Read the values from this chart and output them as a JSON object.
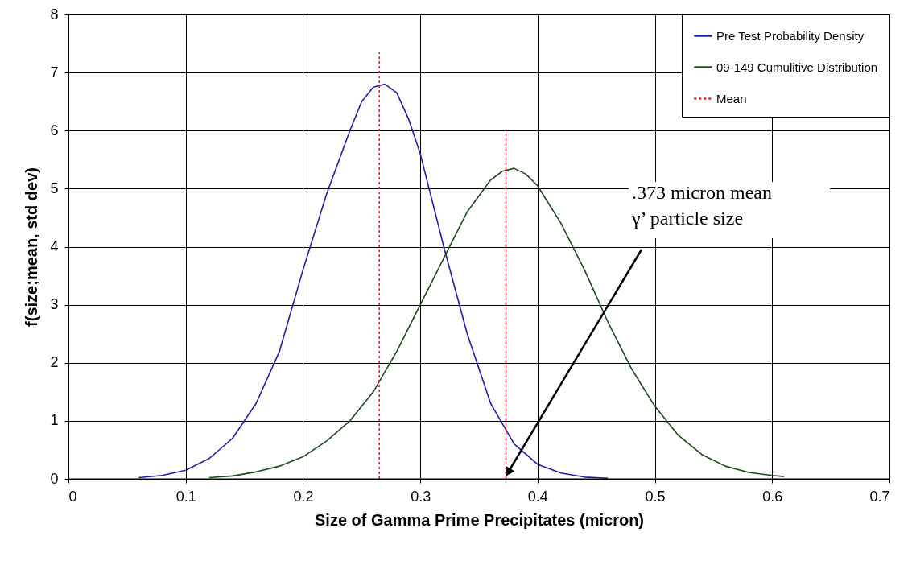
{
  "chart_data": {
    "type": "line",
    "xlabel": "Size of Gamma Prime Precipitates (micron)",
    "ylabel": "f(size;mean, std dev)",
    "xlim": [
      0,
      0.7
    ],
    "xticks": [
      0,
      0.1,
      0.2,
      0.3,
      0.4,
      0.5,
      0.6,
      0.7
    ],
    "ylim": [
      0,
      8
    ],
    "yticks": [
      0,
      1,
      2,
      3,
      4,
      5,
      6,
      7,
      8
    ],
    "grid": true,
    "legend": "top right",
    "series": [
      {
        "name": "Pre Test Probability Density",
        "color": "#1f1fa0",
        "line_style": "solid",
        "x": [
          0.06,
          0.08,
          0.1,
          0.12,
          0.14,
          0.16,
          0.18,
          0.2,
          0.22,
          0.24,
          0.25,
          0.26,
          0.27,
          0.28,
          0.29,
          0.3,
          0.32,
          0.34,
          0.36,
          0.38,
          0.4,
          0.42,
          0.44,
          0.46
        ],
        "values": [
          0.02,
          0.06,
          0.15,
          0.35,
          0.7,
          1.3,
          2.2,
          3.6,
          4.9,
          6.0,
          6.5,
          6.75,
          6.8,
          6.65,
          6.2,
          5.6,
          4.0,
          2.5,
          1.3,
          0.6,
          0.25,
          0.1,
          0.03,
          0.01
        ]
      },
      {
        "name": "09-149 Cumulitive Distribution",
        "color": "#1e4a1e",
        "line_style": "solid",
        "x": [
          0.12,
          0.14,
          0.16,
          0.18,
          0.2,
          0.22,
          0.24,
          0.26,
          0.28,
          0.3,
          0.32,
          0.34,
          0.36,
          0.37,
          0.38,
          0.39,
          0.4,
          0.42,
          0.44,
          0.46,
          0.48,
          0.5,
          0.52,
          0.54,
          0.56,
          0.58,
          0.6,
          0.61
        ],
        "values": [
          0.02,
          0.05,
          0.12,
          0.22,
          0.38,
          0.65,
          1.0,
          1.5,
          2.2,
          3.0,
          3.8,
          4.6,
          5.15,
          5.3,
          5.35,
          5.25,
          5.05,
          4.4,
          3.6,
          2.7,
          1.9,
          1.25,
          0.75,
          0.42,
          0.22,
          0.11,
          0.06,
          0.04
        ]
      },
      {
        "name": "Mean",
        "color": "#e02020",
        "line_style": "dotted",
        "x": [
          0.265,
          0.265
        ],
        "values": [
          0,
          7.35
        ]
      },
      {
        "color": "#e02020",
        "line_style": "dotted",
        "x": [
          0.373,
          0.373
        ],
        "values": [
          0,
          6.0
        ]
      }
    ],
    "annotations": [
      {
        "text": ".373 micron mean\nγ’ particle size",
        "x": 0.373,
        "y": 0.05
      }
    ]
  }
}
